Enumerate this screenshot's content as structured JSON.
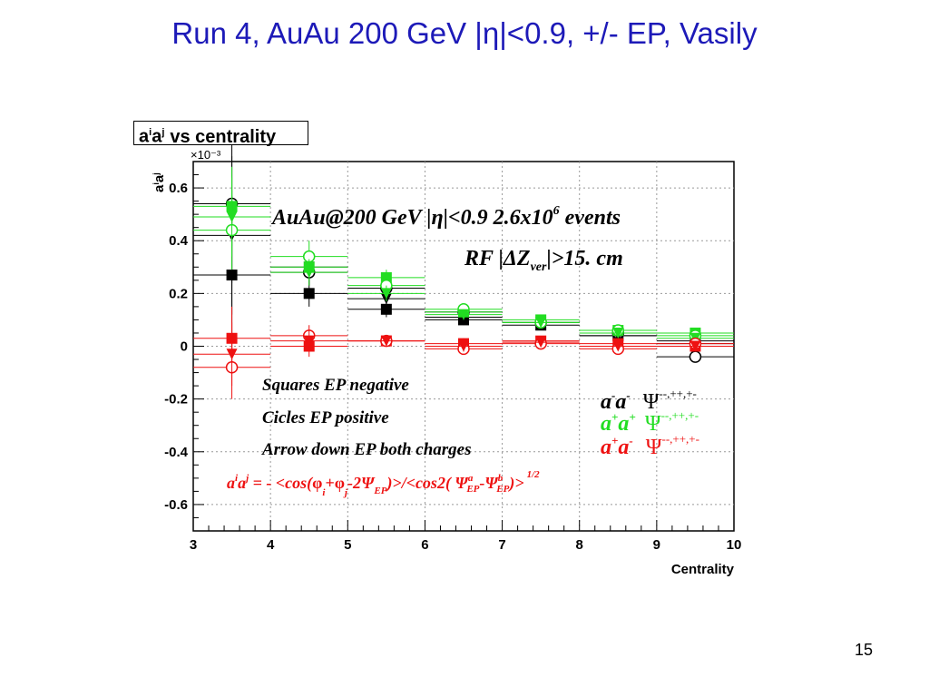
{
  "slide": {
    "title": "Run 4, AuAu 200 GeV |η|<0.9, +/- EP, Vasily",
    "page_number": "15"
  },
  "colors": {
    "title": "#1d1ab8",
    "same_neg": "#000000",
    "same_pos": "#22dd22",
    "opposite": "#ee1111"
  },
  "chart_data": {
    "type": "scatter",
    "histogram_title": {
      "main": "a",
      "sup1": "i",
      "mid": "a",
      "sup2": "j",
      "rest": "vs centrality"
    },
    "xlabel": "Centrality",
    "ylabel": {
      "main": "a",
      "sup1": "i",
      "mid": "a",
      "sup2": "j"
    },
    "y_exponent": "×10⁻³",
    "xlim": [
      3,
      10
    ],
    "ylim": [
      -0.7,
      0.7
    ],
    "x_ticks": [
      "3",
      "4",
      "5",
      "6",
      "7",
      "8",
      "9",
      "10"
    ],
    "y_ticks": [
      "-0.6",
      "-0.4",
      "-0.2",
      "0",
      "0.2",
      "0.4",
      "0.6"
    ],
    "x": [
      3.5,
      4.5,
      5.5,
      6.5,
      7.5,
      8.5,
      9.5
    ],
    "x_halfwidth": 0.5,
    "series": [
      {
        "color_key": "same_neg",
        "marker": "square",
        "values": [
          0.27,
          0.2,
          0.14,
          0.1,
          0.08,
          0.04,
          0.02
        ],
        "errors": [
          0.3,
          0.05,
          0.03,
          0.02,
          0.015,
          0.015,
          0.015
        ]
      },
      {
        "color_key": "same_neg",
        "marker": "circle",
        "values": [
          0.54,
          0.28,
          0.22,
          0.13,
          0.09,
          0.05,
          -0.04
        ],
        "errors": [
          0.3,
          0.05,
          0.03,
          0.02,
          0.015,
          0.015,
          0.015
        ]
      },
      {
        "color_key": "same_neg",
        "marker": "triangle",
        "values": [
          0.42,
          0.3,
          0.18,
          0.11,
          0.09,
          0.04,
          0.01
        ],
        "errors": [
          0.3,
          0.05,
          0.03,
          0.02,
          0.015,
          0.015,
          0.015
        ]
      },
      {
        "color_key": "same_pos",
        "marker": "square",
        "values": [
          0.53,
          0.3,
          0.26,
          0.13,
          0.1,
          0.06,
          0.05
        ],
        "errors": [
          0.15,
          0.05,
          0.03,
          0.02,
          0.015,
          0.015,
          0.015
        ]
      },
      {
        "color_key": "same_pos",
        "marker": "circle",
        "values": [
          0.44,
          0.34,
          0.23,
          0.14,
          0.09,
          0.06,
          0.04
        ],
        "errors": [
          0.15,
          0.06,
          0.03,
          0.02,
          0.015,
          0.015,
          0.015
        ]
      },
      {
        "color_key": "same_pos",
        "marker": "triangle",
        "values": [
          0.49,
          0.28,
          0.2,
          0.12,
          0.09,
          0.05,
          0.03
        ],
        "errors": [
          0.15,
          0.05,
          0.03,
          0.02,
          0.015,
          0.015,
          0.015
        ]
      },
      {
        "color_key": "opposite",
        "marker": "square",
        "values": [
          0.03,
          0.0,
          0.02,
          0.01,
          0.02,
          0.01,
          0.0
        ],
        "errors": [
          0.12,
          0.04,
          0.02,
          0.02,
          0.015,
          0.015,
          0.015
        ]
      },
      {
        "color_key": "opposite",
        "marker": "circle",
        "values": [
          -0.08,
          0.04,
          0.02,
          -0.01,
          0.01,
          -0.01,
          0.01
        ],
        "errors": [
          0.12,
          0.04,
          0.02,
          0.02,
          0.015,
          0.015,
          0.015
        ]
      },
      {
        "color_key": "opposite",
        "marker": "triangle",
        "values": [
          -0.03,
          0.02,
          0.02,
          0.0,
          0.015,
          0.0,
          0.0
        ],
        "errors": [
          0.12,
          0.04,
          0.02,
          0.02,
          0.015,
          0.015,
          0.015
        ]
      }
    ],
    "annotations": {
      "header_line1": {
        "a": "AuAu@200 GeV |η|<0.9 2.6x10",
        "sup": "6",
        "b": " events"
      },
      "header_line2": {
        "a": "RF |ΔZ",
        "sub": "ver",
        "b": "|>15. cm"
      },
      "legend_lines": [
        "Squares EP negative",
        "Cicles EP positive",
        "Arrow down EP both charges"
      ],
      "charge_labels": [
        {
          "color_key": "same_neg",
          "text": "a",
          "s1": "-",
          "text2": "a",
          "s2": "-",
          "psi": "Ψ",
          "psi_sup": "--,++,+-"
        },
        {
          "color_key": "same_pos",
          "text": "a",
          "s1": "+",
          "text2": "a",
          "s2": "+",
          "psi": "Ψ",
          "psi_sup": "--,++,+-"
        },
        {
          "color_key": "opposite",
          "text": "a",
          "s1": "+",
          "text2": "a",
          "s2": "-",
          "psi": "Ψ",
          "psi_sup": "--,++,+-"
        }
      ],
      "formula": {
        "lhs": "a",
        "lhs_s1": "i",
        "lhs_mid": "a",
        "lhs_s2": "j",
        "eq": " = - <cos(",
        "phi": "φ",
        "sub_i": "i",
        "plus": "+",
        "sub_j": "j",
        "two_psi": "-2Ψ",
        "ep": "EP",
        "mid": ")>/<cos2( Ψ",
        "sup_a": "a",
        "minus_psi": "-Ψ",
        "sup_b": "b",
        "close": ")>",
        "power": "1/2"
      }
    }
  }
}
